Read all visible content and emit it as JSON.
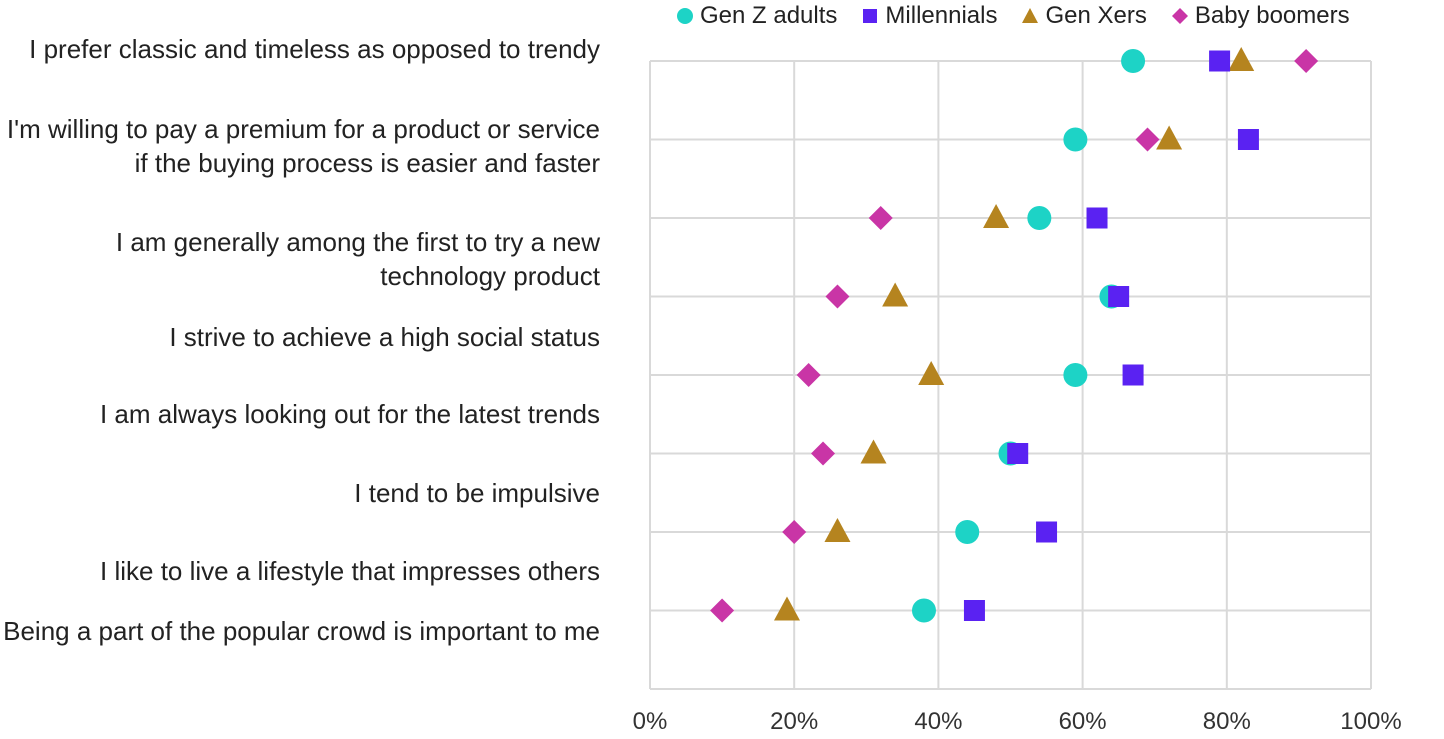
{
  "chart_data": {
    "type": "scatter",
    "title": "",
    "xlabel": "",
    "ylabel": "",
    "xlim": [
      0,
      100
    ],
    "x_tick_labels": [
      "0%",
      "20%",
      "40%",
      "60%",
      "80%",
      "100%"
    ],
    "x_ticks": [
      0,
      20,
      40,
      60,
      80,
      100
    ],
    "grid": true,
    "legend_position": "top",
    "categories": [
      "I prefer classic and timeless as opposed to trendy",
      "I'm willing to pay a premium for a product or service if the buying process is easier and faster",
      "I am generally among the first to try a new technology product",
      "I strive to achieve a high social status",
      "I am always looking out for the latest trends",
      "I tend to be impulsive",
      "I like to live a lifestyle that impresses others",
      "Being a part of the popular crowd is important to me"
    ],
    "series": [
      {
        "name": "Gen Z adults",
        "marker": "circle",
        "color": "#1dd3c6",
        "values": [
          67,
          59,
          54,
          64,
          59,
          50,
          44,
          38
        ]
      },
      {
        "name": "Millennials",
        "marker": "square",
        "color": "#5a22f2",
        "values": [
          79,
          83,
          62,
          65,
          67,
          51,
          55,
          45
        ]
      },
      {
        "name": "Gen Xers",
        "marker": "triangle",
        "color": "#b5841f",
        "values": [
          82,
          72,
          48,
          34,
          39,
          31,
          26,
          19
        ]
      },
      {
        "name": "Baby boomers",
        "marker": "diamond",
        "color": "#c935a6",
        "values": [
          91,
          69,
          32,
          26,
          22,
          24,
          20,
          10
        ]
      }
    ]
  }
}
